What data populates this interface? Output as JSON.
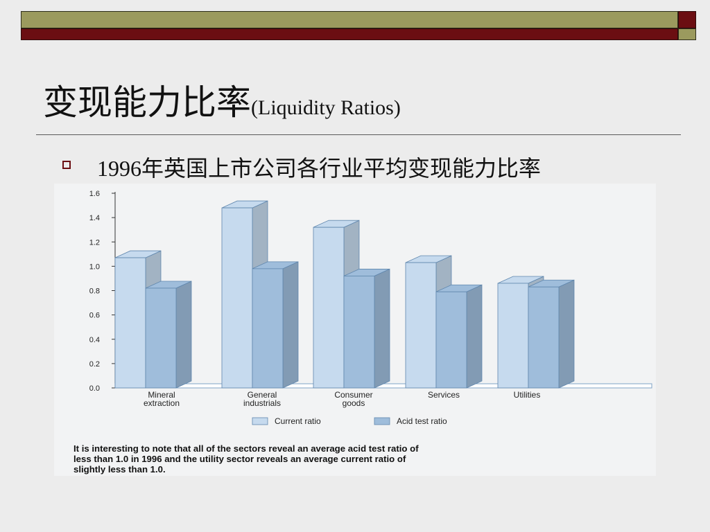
{
  "slide": {
    "title_cn": "变现能力比率",
    "title_en": "(Liquidity Ratios)",
    "bullet": "1996年英国上市公司各行业平均变现能力比率"
  },
  "colors": {
    "band_olive": "#9b9a5e",
    "band_maroon": "#6b0e12",
    "current_ratio": "#c6daee",
    "acid_test_ratio": "#9fbddb"
  },
  "chart_data": {
    "type": "bar",
    "categories": [
      [
        "Mineral",
        "extraction"
      ],
      [
        "General",
        "industrials"
      ],
      [
        "Consumer",
        "goods"
      ],
      [
        "Services"
      ],
      [
        "Utilities"
      ]
    ],
    "series": [
      {
        "name": "Current ratio",
        "values": [
          1.07,
          1.48,
          1.32,
          1.03,
          0.86
        ]
      },
      {
        "name": "Acid test ratio",
        "values": [
          0.82,
          0.98,
          0.92,
          0.79,
          0.83
        ]
      }
    ],
    "yticks": [
      "0.0",
      "0.2",
      "0.4",
      "0.6",
      "0.8",
      "1.0",
      "1.2",
      "1.4",
      "1.6"
    ],
    "ylim": [
      0,
      1.6
    ],
    "grid": false,
    "legend_position": "bottom",
    "caption": [
      "It is interesting to note that all of the sectors reveal an average acid test ratio of",
      "less than 1.0 in 1996 and the utility sector reveals an average current ratio of",
      "slightly less than 1.0."
    ]
  }
}
